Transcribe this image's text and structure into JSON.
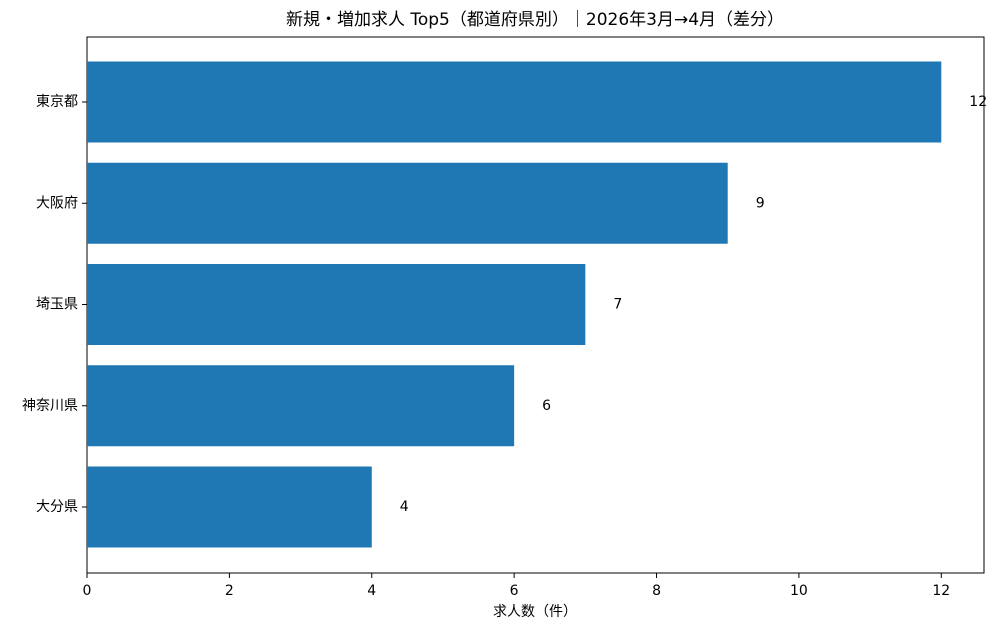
{
  "chart_data": {
    "type": "barh",
    "title": "新規・増加求人 Top5（都道府県別）｜2026年3月→4月（差分）",
    "x_label": "求人数（件）",
    "categories": [
      "東京都",
      "大阪府",
      "埼玉県",
      "神奈川県",
      "大分県"
    ],
    "values": [
      12,
      9,
      7,
      6,
      4
    ],
    "color": "#1f77b4",
    "xlim": [
      0,
      12.6
    ],
    "xticks": [
      0,
      2,
      4,
      6,
      8,
      10,
      12
    ]
  }
}
